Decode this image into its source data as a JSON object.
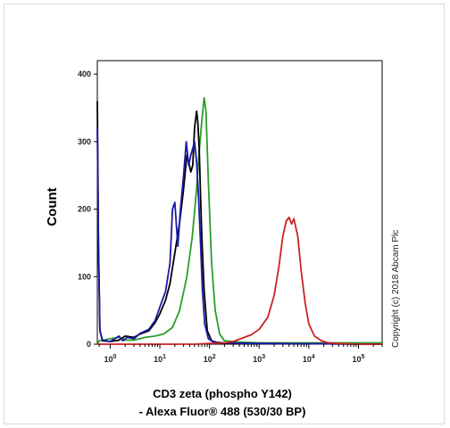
{
  "chart_data": {
    "type": "line",
    "xlabel_line1": "CD3 zeta (phospho Y142)",
    "xlabel_line2": "- Alexa Fluor® 488 (530/30 BP)",
    "ylabel": "Count",
    "copyright": "Copyright (c) 2018 Abcam Plc",
    "x_scale": "log",
    "xlim": [
      0.55,
      300000
    ],
    "ylim": [
      0,
      420
    ],
    "y_ticks": [
      0,
      100,
      200,
      300,
      400
    ],
    "x_ticks": [
      {
        "value": 1,
        "base": "10",
        "exp": "0"
      },
      {
        "value": 10,
        "base": "10",
        "exp": "1"
      },
      {
        "value": 100,
        "base": "10",
        "exp": "2"
      },
      {
        "value": 1000,
        "base": "10",
        "exp": "3"
      },
      {
        "value": 10000,
        "base": "10",
        "exp": "4"
      },
      {
        "value": 100000,
        "base": "10",
        "exp": "5"
      }
    ],
    "grid": false,
    "series": [
      {
        "color": "#2a9e2a",
        "x": [
          0.55,
          0.6,
          1,
          1.5,
          2,
          3,
          5,
          8,
          12,
          18,
          25,
          35,
          45,
          55,
          62,
          70,
          78,
          85,
          95,
          110,
          130,
          160,
          200,
          400,
          1000,
          10000,
          300000
        ],
        "y": [
          0,
          5,
          8,
          10,
          6,
          6,
          10,
          12,
          15,
          25,
          50,
          100,
          160,
          230,
          285,
          330,
          365,
          345,
          240,
          120,
          50,
          15,
          5,
          3,
          2,
          2,
          2
        ]
      },
      {
        "color": "#000000",
        "x": [
          0.55,
          0.58,
          0.62,
          0.7,
          1,
          1.5,
          2,
          3,
          4,
          6,
          8,
          10,
          13,
          16,
          20,
          25,
          30,
          35,
          38,
          42,
          46,
          50,
          55,
          58,
          62,
          66,
          70,
          78,
          90,
          110,
          150,
          300,
          1000,
          300000
        ],
        "y": [
          360,
          150,
          20,
          5,
          4,
          6,
          12,
          10,
          15,
          20,
          32,
          45,
          65,
          90,
          135,
          180,
          230,
          280,
          270,
          255,
          265,
          320,
          345,
          330,
          290,
          220,
          160,
          80,
          20,
          5,
          2,
          1,
          1,
          0
        ]
      },
      {
        "color": "#1a1aa8",
        "x": [
          0.55,
          0.58,
          0.62,
          0.7,
          1,
          1.5,
          1.8,
          2.2,
          3,
          4,
          6,
          8,
          10,
          13,
          16,
          18,
          20,
          23,
          26,
          30,
          34,
          38,
          42,
          46,
          50,
          55,
          60,
          66,
          72,
          80,
          95,
          120,
          200,
          1000,
          300000
        ],
        "y": [
          320,
          140,
          20,
          6,
          4,
          12,
          5,
          10,
          8,
          16,
          22,
          35,
          55,
          78,
          120,
          200,
          210,
          145,
          200,
          250,
          300,
          265,
          280,
          290,
          300,
          270,
          220,
          150,
          80,
          30,
          8,
          3,
          2,
          1,
          0
        ]
      },
      {
        "color": "#cc2222",
        "x": [
          0.55,
          1,
          10,
          50,
          100,
          200,
          300,
          500,
          700,
          1000,
          1500,
          2000,
          2500,
          3000,
          3500,
          4000,
          4500,
          5000,
          6000,
          7000,
          8500,
          10000,
          13000,
          18000,
          25000,
          40000,
          100000,
          300000
        ],
        "y": [
          0,
          0,
          0,
          0,
          1,
          2,
          4,
          10,
          14,
          22,
          40,
          72,
          115,
          160,
          182,
          188,
          178,
          186,
          160,
          110,
          60,
          30,
          12,
          5,
          2,
          1,
          0,
          0
        ]
      }
    ]
  }
}
